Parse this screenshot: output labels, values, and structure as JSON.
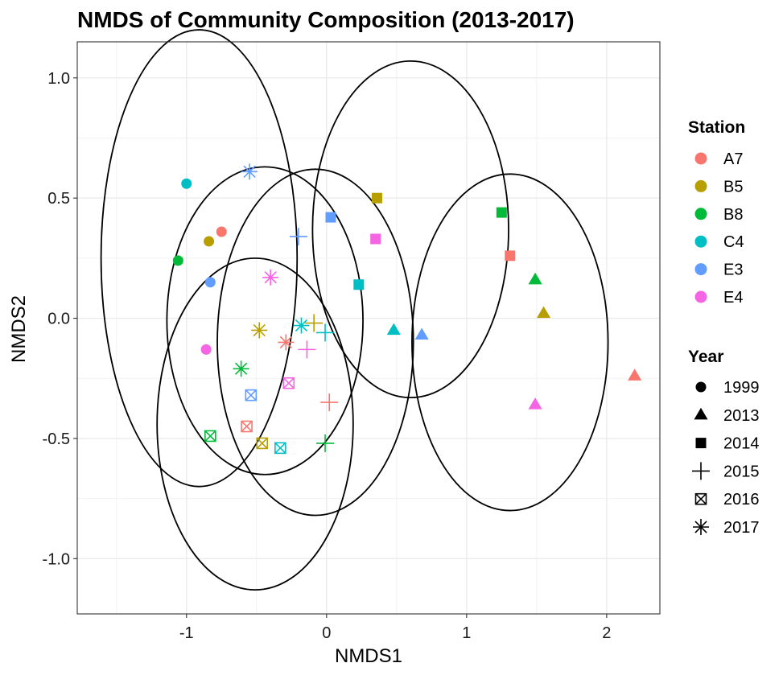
{
  "chart_data": {
    "type": "scatter",
    "title": "NMDS of Community Composition (2013-2017)",
    "xlabel": "NMDS1",
    "ylabel": "NMDS2",
    "xlim": [
      -1.78,
      2.38
    ],
    "ylim": [
      -1.23,
      1.15
    ],
    "xticks": [
      -1,
      0,
      1,
      2
    ],
    "xtick_labels": [
      "-1",
      "0",
      "1",
      "2"
    ],
    "yticks": [
      -1.0,
      -0.5,
      0.0,
      0.5,
      1.0
    ],
    "ytick_labels": [
      "-1.0",
      "-0.5",
      "0.0",
      "0.5",
      "1.0"
    ],
    "grid": true,
    "theme": "bw",
    "legend_placement": "right",
    "color_legend": {
      "title": "Station",
      "entries": [
        {
          "label": "A7",
          "color": "#F8766D"
        },
        {
          "label": "B5",
          "color": "#B79F00"
        },
        {
          "label": "B8",
          "color": "#00BA38"
        },
        {
          "label": "C4",
          "color": "#00BFC4"
        },
        {
          "label": "E3",
          "color": "#619CFF"
        },
        {
          "label": "E4",
          "color": "#F564E3"
        }
      ]
    },
    "shape_legend": {
      "title": "Year",
      "entries": [
        {
          "label": "1999",
          "shape": "circle"
        },
        {
          "label": "2013",
          "shape": "triangle"
        },
        {
          "label": "2014",
          "shape": "square"
        },
        {
          "label": "2015",
          "shape": "plus"
        },
        {
          "label": "2016",
          "shape": "square-cross"
        },
        {
          "label": "2017",
          "shape": "asterisk"
        }
      ]
    },
    "points": [
      {
        "station": "A7",
        "year": "1999",
        "x": -0.75,
        "y": 0.36
      },
      {
        "station": "B5",
        "year": "1999",
        "x": -0.84,
        "y": 0.32
      },
      {
        "station": "B8",
        "year": "1999",
        "x": -1.06,
        "y": 0.24
      },
      {
        "station": "C4",
        "year": "1999",
        "x": -1.0,
        "y": 0.56
      },
      {
        "station": "E3",
        "year": "1999",
        "x": -0.83,
        "y": 0.15
      },
      {
        "station": "E4",
        "year": "1999",
        "x": -0.86,
        "y": -0.13
      },
      {
        "station": "A7",
        "year": "2013",
        "x": 2.2,
        "y": -0.24
      },
      {
        "station": "B5",
        "year": "2013",
        "x": 1.55,
        "y": 0.02
      },
      {
        "station": "B8",
        "year": "2013",
        "x": 1.49,
        "y": 0.16
      },
      {
        "station": "C4",
        "year": "2013",
        "x": 0.48,
        "y": -0.05
      },
      {
        "station": "E3",
        "year": "2013",
        "x": 0.68,
        "y": -0.07
      },
      {
        "station": "E4",
        "year": "2013",
        "x": 1.49,
        "y": -0.36
      },
      {
        "station": "A7",
        "year": "2014",
        "x": 1.31,
        "y": 0.26
      },
      {
        "station": "B5",
        "year": "2014",
        "x": 0.36,
        "y": 0.5
      },
      {
        "station": "B8",
        "year": "2014",
        "x": 1.25,
        "y": 0.44
      },
      {
        "station": "C4",
        "year": "2014",
        "x": 0.23,
        "y": 0.14
      },
      {
        "station": "E3",
        "year": "2014",
        "x": 0.03,
        "y": 0.42
      },
      {
        "station": "E4",
        "year": "2014",
        "x": 0.35,
        "y": 0.33
      },
      {
        "station": "A7",
        "year": "2015",
        "x": 0.02,
        "y": -0.35
      },
      {
        "station": "B5",
        "year": "2015",
        "x": -0.09,
        "y": -0.02
      },
      {
        "station": "B8",
        "year": "2015",
        "x": -0.01,
        "y": -0.52
      },
      {
        "station": "C4",
        "year": "2015",
        "x": -0.01,
        "y": -0.06
      },
      {
        "station": "E3",
        "year": "2015",
        "x": -0.2,
        "y": 0.34
      },
      {
        "station": "E4",
        "year": "2015",
        "x": -0.14,
        "y": -0.13
      },
      {
        "station": "A7",
        "year": "2016",
        "x": -0.57,
        "y": -0.45
      },
      {
        "station": "B5",
        "year": "2016",
        "x": -0.46,
        "y": -0.52
      },
      {
        "station": "B8",
        "year": "2016",
        "x": -0.83,
        "y": -0.49
      },
      {
        "station": "C4",
        "year": "2016",
        "x": -0.33,
        "y": -0.54
      },
      {
        "station": "E3",
        "year": "2016",
        "x": -0.54,
        "y": -0.32
      },
      {
        "station": "E4",
        "year": "2016",
        "x": -0.27,
        "y": -0.27
      },
      {
        "station": "A7",
        "year": "2017",
        "x": -0.29,
        "y": -0.1
      },
      {
        "station": "B5",
        "year": "2017",
        "x": -0.48,
        "y": -0.05
      },
      {
        "station": "B8",
        "year": "2017",
        "x": -0.61,
        "y": -0.21
      },
      {
        "station": "C4",
        "year": "2017",
        "x": -0.18,
        "y": -0.03
      },
      {
        "station": "E3",
        "year": "2017",
        "x": -0.55,
        "y": 0.61
      },
      {
        "station": "E4",
        "year": "2017",
        "x": -0.4,
        "y": 0.17
      }
    ],
    "ellipses": [
      {
        "year": "1999",
        "cx": -0.91,
        "cy": 0.25,
        "rx": 0.7,
        "ry": 0.95
      },
      {
        "year": "2013",
        "cx": 1.31,
        "cy": -0.1,
        "rx": 0.7,
        "ry": 0.7
      },
      {
        "year": "2014",
        "cx": 0.6,
        "cy": 0.37,
        "rx": 0.7,
        "ry": 0.7
      },
      {
        "year": "2015",
        "cx": -0.08,
        "cy": -0.1,
        "rx": 0.7,
        "ry": 0.72
      },
      {
        "year": "2016",
        "cx": -0.51,
        "cy": -0.44,
        "rx": 0.7,
        "ry": 0.69
      },
      {
        "year": "2017",
        "cx": -0.44,
        "cy": -0.01,
        "rx": 0.7,
        "ry": 0.64
      }
    ]
  }
}
